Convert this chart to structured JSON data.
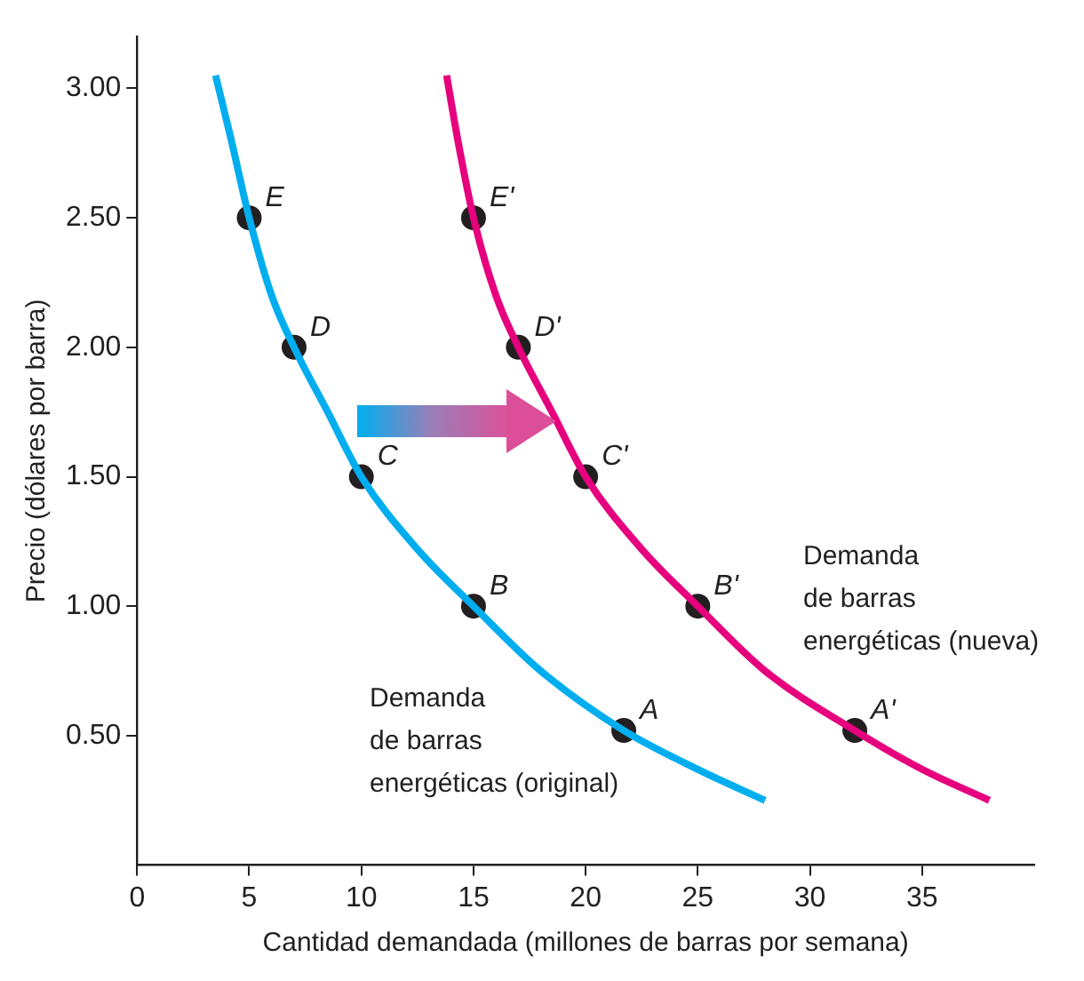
{
  "chart_data": {
    "type": "line",
    "xlabel": "Cantidad demandada (millones de barras por semana)",
    "ylabel": "Precio (dólares por barra)",
    "xlim": [
      0,
      40
    ],
    "ylim": [
      0,
      3.2
    ],
    "xticks": [
      0,
      5,
      10,
      15,
      20,
      25,
      30,
      35
    ],
    "yticks": [
      {
        "value": 0.5,
        "label": "0.50"
      },
      {
        "value": 1,
        "label": "1.00"
      },
      {
        "value": 1.5,
        "label": "1.50"
      },
      {
        "value": 2,
        "label": "2.00"
      },
      {
        "value": 2.5,
        "label": "2.50"
      },
      {
        "value": 3,
        "label": "3.00"
      }
    ],
    "grid": false,
    "legend": false,
    "series": [
      {
        "color": "#00aeef",
        "marker": "none",
        "x": [
          3.5,
          4.2,
          5,
          6,
          7,
          8.5,
          10,
          12.5,
          15,
          18,
          21.7,
          25,
          28
        ],
        "values": [
          3.05,
          2.8,
          2.5,
          2.2,
          2.0,
          1.75,
          1.5,
          1.22,
          1.0,
          0.75,
          0.52,
          0.37,
          0.25
        ]
      },
      {
        "color": "#e6007e",
        "marker": "none",
        "x": [
          13.8,
          14.3,
          15,
          16,
          17,
          18.5,
          20,
          22.5,
          25,
          28,
          32,
          35,
          38
        ],
        "values": [
          3.05,
          2.8,
          2.5,
          2.2,
          2.0,
          1.75,
          1.5,
          1.22,
          1.0,
          0.75,
          0.52,
          0.37,
          0.25
        ]
      },
      {
        "type": "scatter",
        "color": "#231f20",
        "marker": "circle",
        "x": [
          21.7,
          15,
          10,
          7,
          5,
          32,
          25,
          20,
          17,
          15
        ],
        "values": [
          0.52,
          1.0,
          1.5,
          2.0,
          2.5,
          0.52,
          1.0,
          1.5,
          2.0,
          2.5
        ]
      }
    ],
    "annotations": [
      {
        "text": "A",
        "x": 21.7,
        "y": 0.52
      },
      {
        "text": "B",
        "x": 15,
        "y": 1.0
      },
      {
        "text": "C",
        "x": 10,
        "y": 1.5
      },
      {
        "text": "D",
        "x": 7,
        "y": 2.0
      },
      {
        "text": "E",
        "x": 5,
        "y": 2.5
      },
      {
        "text": "A'",
        "x": 32,
        "y": 0.52
      },
      {
        "text": "B'",
        "x": 25,
        "y": 1.0
      },
      {
        "text": "C'",
        "x": 20,
        "y": 1.5
      },
      {
        "text": "D'",
        "x": 17,
        "y": 2.0
      },
      {
        "text": "E'",
        "x": 15,
        "y": 2.5
      },
      "Demanda de barras energéticas (original)",
      "Demanda de barras energéticas (nueva)"
    ]
  }
}
